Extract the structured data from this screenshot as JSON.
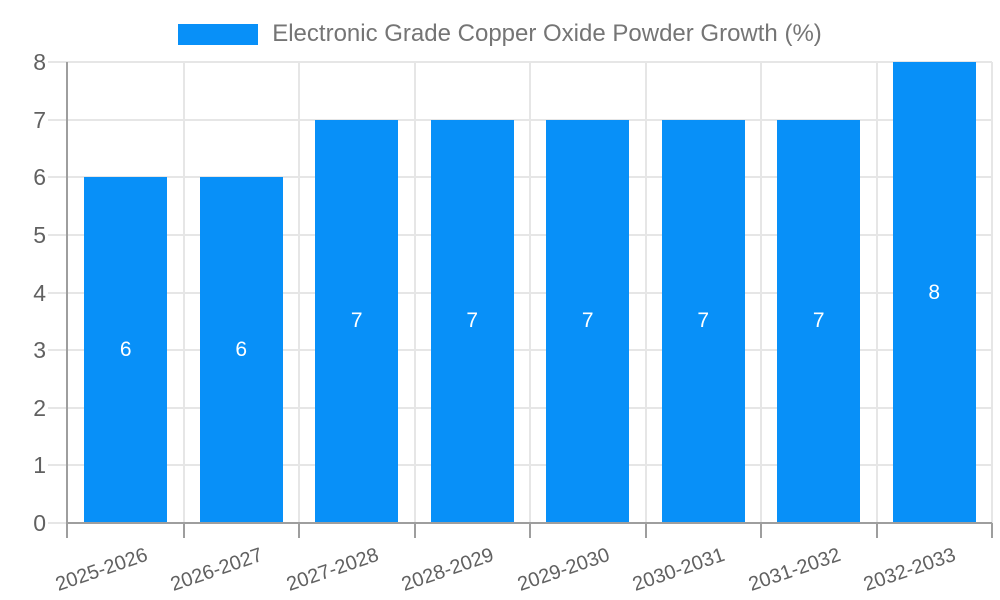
{
  "chart_data": {
    "type": "bar",
    "title": "Electronic Grade Copper Oxide Powder Growth (%)",
    "categories": [
      "2025-2026",
      "2026-2027",
      "2027-2028",
      "2028-2029",
      "2029-2030",
      "2030-2031",
      "2031-2032",
      "2032-2033"
    ],
    "values": [
      6,
      6,
      7,
      7,
      7,
      7,
      7,
      8
    ],
    "xlabel": "",
    "ylabel": "",
    "ylim": [
      0,
      8
    ],
    "yticks": [
      0,
      1,
      2,
      3,
      4,
      5,
      6,
      7,
      8
    ],
    "grid": true,
    "legend_position": "top-center",
    "value_labels_inside_bars": true,
    "x_label_rotation_deg": -19,
    "colors": {
      "bar": "#0890f8",
      "bar_value_text": "#ffffff",
      "gridline": "#e6e6e6",
      "axis_line": "#9e9e9e",
      "tick_text": "#616161",
      "title_text": "#757575",
      "background": "#ffffff"
    }
  }
}
